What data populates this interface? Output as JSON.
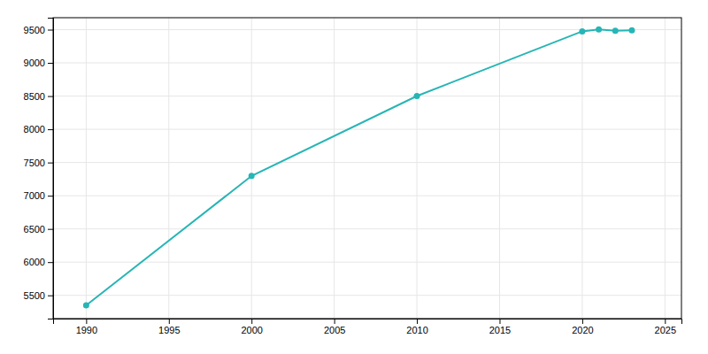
{
  "chart_data": {
    "type": "line",
    "x": [
      1990,
      2000,
      2010,
      2020,
      2021,
      2022,
      2023
    ],
    "values": [
      5350,
      7298,
      8501,
      9475,
      9503,
      9484,
      9490
    ],
    "color": "#27b5b5",
    "marker": "circle",
    "xlim": [
      1988,
      2026
    ],
    "ylim": [
      5150,
      9680
    ],
    "xticks": [
      1990,
      1995,
      2000,
      2005,
      2010,
      2015,
      2020,
      2025
    ],
    "yticks": [
      5500,
      6000,
      6500,
      7000,
      7500,
      8000,
      8500,
      9000,
      9500
    ],
    "grid": true
  }
}
